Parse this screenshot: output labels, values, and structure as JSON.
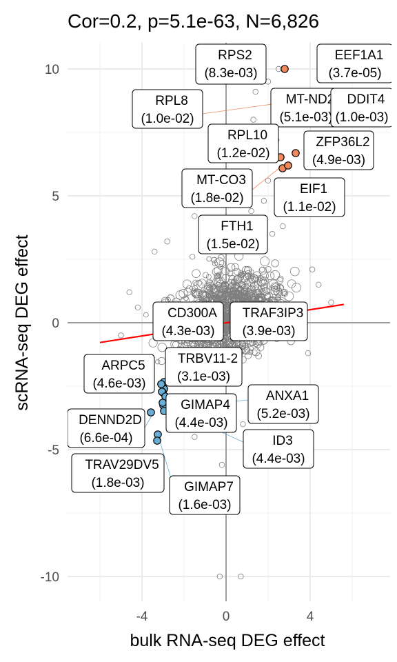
{
  "chart_data": {
    "type": "scatter",
    "title": "Cor=0.2, p=5.1e-63, N=6,826",
    "xlabel": "bulk RNA-seq DEG effect",
    "ylabel": "scRNA-seq DEG effect",
    "xlim": [
      -7.5,
      7.5
    ],
    "ylim": [
      -11,
      11
    ],
    "xticks": [
      -4,
      0,
      4
    ],
    "yticks": [
      -10,
      -5,
      0,
      5,
      10
    ],
    "grid": true,
    "colors": {
      "background_point": "#7f7f7f",
      "up": "#f08a5d",
      "down": "#6aaed6",
      "regression": "#ff0000",
      "zero_line": "#4d4d4d"
    },
    "regression_line": {
      "x": [
        -6,
        5.6
      ],
      "y": [
        -0.78,
        0.72
      ]
    },
    "labels": [
      {
        "gene": "RPS2",
        "pvalue": "(8.3e-03)",
        "x": 2.8,
        "y": 10.0,
        "dir": "up"
      },
      {
        "gene": "EEF1A1",
        "pvalue": "(3.7e-05)",
        "x": 4.7,
        "y": 10.5,
        "dir": "up"
      },
      {
        "gene": "RPL8",
        "pvalue": "(1.0e-02)",
        "x": 2.2,
        "y": 8.2,
        "dir": "up"
      },
      {
        "gene": "MT-ND2",
        "pvalue": "(5.1e-03)",
        "x": 3.8,
        "y": 8.2,
        "dir": "up"
      },
      {
        "gene": "DDIT4",
        "pvalue": "(1.0e-03)",
        "x": 4.8,
        "y": 7.8,
        "dir": "up"
      },
      {
        "gene": "RPL10",
        "pvalue": "(1.2e-02)",
        "x": 2.6,
        "y": 6.5,
        "dir": "up"
      },
      {
        "gene": "ZFP36L2",
        "pvalue": "(4.9e-03)",
        "x": 3.3,
        "y": 6.7,
        "dir": "up"
      },
      {
        "gene": "MT-CO3",
        "pvalue": "(1.8e-02)",
        "x": 2.6,
        "y": 6.0,
        "dir": "up"
      },
      {
        "gene": "EIF1",
        "pvalue": "(1.1e-02)",
        "x": 2.9,
        "y": 6.2,
        "dir": "up"
      },
      {
        "gene": "FTH1",
        "pvalue": "(1.5e-02)",
        "x": 2.7,
        "y": 5.2,
        "dir": "up"
      },
      {
        "gene": "CD300A",
        "pvalue": "(4.3e-03)",
        "x": -3.1,
        "y": -2.3,
        "dir": "down"
      },
      {
        "gene": "TRAF3IP3",
        "pvalue": "(3.9e-03)",
        "x": -3.0,
        "y": -2.6,
        "dir": "down"
      },
      {
        "gene": "ARPC5",
        "pvalue": "(4.6e-03)",
        "x": -3.2,
        "y": -2.5,
        "dir": "down"
      },
      {
        "gene": "TRBV11-2",
        "pvalue": "(3.1e-03)",
        "x": -3.0,
        "y": -2.4,
        "dir": "down"
      },
      {
        "gene": "GIMAP4",
        "pvalue": "(4.4e-03)",
        "x": -3.1,
        "y": -3.5,
        "dir": "down"
      },
      {
        "gene": "ANXA1",
        "pvalue": "(5.2e-03)",
        "x": -3.1,
        "y": -3.2,
        "dir": "down"
      },
      {
        "gene": "DENND2D",
        "pvalue": "(6.6e-04)",
        "x": -3.6,
        "y": -3.5,
        "dir": "down"
      },
      {
        "gene": "ID3",
        "pvalue": "(4.4e-03)",
        "x": -3.0,
        "y": -3.6,
        "dir": "down"
      },
      {
        "gene": "TRAV29DV5",
        "pvalue": "(1.8e-03)",
        "x": -3.3,
        "y": -4.4,
        "dir": "down"
      },
      {
        "gene": "GIMAP7",
        "pvalue": "(1.6e-03)",
        "x": -3.3,
        "y": -4.6,
        "dir": "down"
      }
    ]
  }
}
